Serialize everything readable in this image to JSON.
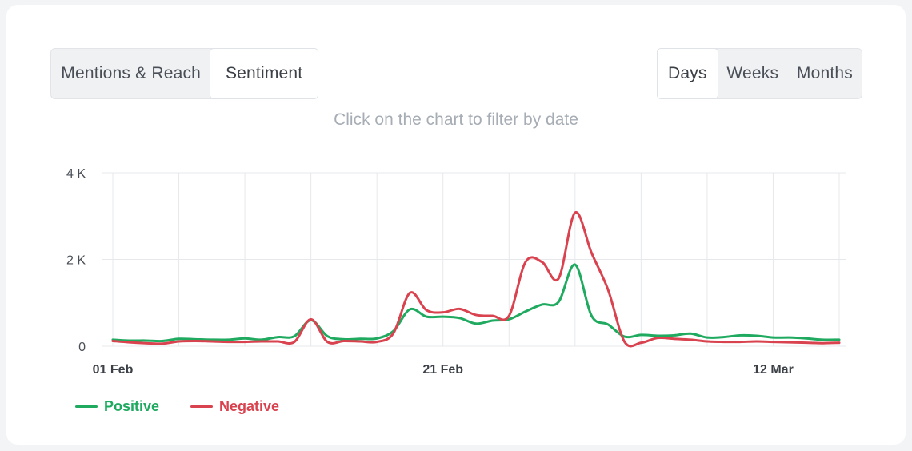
{
  "tabs_left": [
    {
      "label": "Mentions & Reach",
      "active": false
    },
    {
      "label": "Sentiment",
      "active": true
    }
  ],
  "tabs_right": [
    {
      "label": "Days",
      "active": true
    },
    {
      "label": "Weeks",
      "active": false
    },
    {
      "label": "Months",
      "active": false
    }
  ],
  "hint": "Click on the chart to filter by date",
  "colors": {
    "positive": "#1faa60",
    "negative": "#d9434f",
    "grid": "#e6e8eb"
  },
  "chart_data": {
    "type": "line",
    "x": [
      "01 Feb",
      "02 Feb",
      "03 Feb",
      "04 Feb",
      "05 Feb",
      "06 Feb",
      "07 Feb",
      "08 Feb",
      "09 Feb",
      "10 Feb",
      "11 Feb",
      "12 Feb",
      "13 Feb",
      "14 Feb",
      "15 Feb",
      "16 Feb",
      "17 Feb",
      "18 Feb",
      "19 Feb",
      "20 Feb",
      "21 Feb",
      "22 Feb",
      "23 Feb",
      "24 Feb",
      "25 Feb",
      "26 Feb",
      "27 Feb",
      "28 Feb",
      "29 Feb",
      "01 Mar",
      "02 Mar",
      "03 Mar",
      "04 Mar",
      "05 Mar",
      "06 Mar",
      "07 Mar",
      "08 Mar",
      "09 Mar",
      "10 Mar",
      "11 Mar",
      "12 Mar",
      "13 Mar",
      "14 Mar",
      "15 Mar",
      "16 Mar"
    ],
    "x_tick_labels": [
      "01 Feb",
      "21 Feb",
      "12 Mar"
    ],
    "y_tick_labels": [
      "0",
      "2 K",
      "4 K"
    ],
    "ylim": [
      0,
      4000
    ],
    "series": [
      {
        "name": "Positive",
        "color": "#1faa60",
        "values": [
          150,
          130,
          130,
          120,
          170,
          160,
          150,
          150,
          180,
          150,
          210,
          230,
          600,
          230,
          160,
          170,
          180,
          350,
          850,
          680,
          680,
          650,
          520,
          590,
          620,
          800,
          960,
          1020,
          1880,
          700,
          500,
          220,
          260,
          240,
          250,
          290,
          200,
          210,
          250,
          240,
          200,
          200,
          180,
          150,
          150
        ]
      },
      {
        "name": "Negative",
        "color": "#d9434f",
        "values": [
          120,
          90,
          70,
          60,
          110,
          120,
          110,
          100,
          100,
          110,
          110,
          100,
          620,
          100,
          120,
          110,
          100,
          300,
          1230,
          830,
          780,
          860,
          720,
          700,
          700,
          1940,
          1940,
          1560,
          3080,
          2150,
          1300,
          100,
          80,
          190,
          170,
          150,
          110,
          100,
          100,
          110,
          100,
          90,
          80,
          70,
          80
        ]
      }
    ],
    "grid": true,
    "legend": "bottom-left"
  }
}
